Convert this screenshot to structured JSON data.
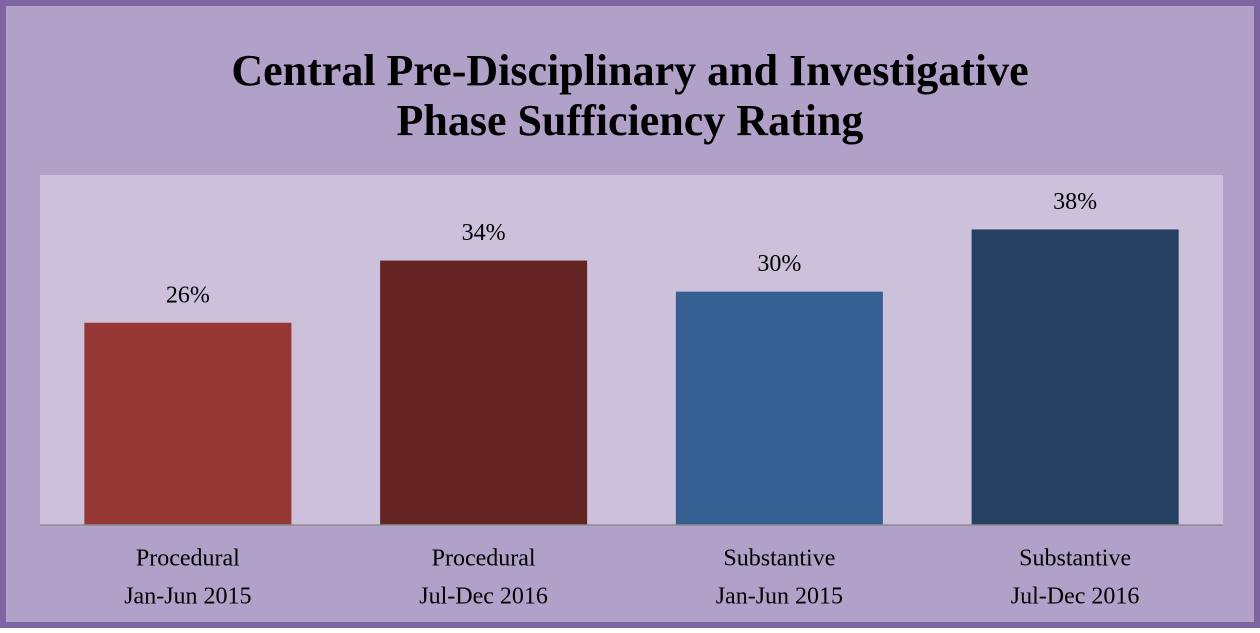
{
  "chart_data": {
    "type": "bar",
    "title": [
      "Central Pre-Disciplinary and Investigative",
      "Phase Sufficiency Rating"
    ],
    "categories": [
      [
        "Procedural",
        "Jan-Jun 2015"
      ],
      [
        "Procedural",
        "Jul-Dec 2016"
      ],
      [
        "Substantive",
        "Jan-Jun 2015"
      ],
      [
        "Substantive",
        "Jul-Dec 2016"
      ]
    ],
    "values": [
      26,
      34,
      30,
      38
    ],
    "value_labels": [
      "26%",
      "34%",
      "30%",
      "38%"
    ],
    "colors": [
      "#953735",
      "#632423",
      "#376092",
      "#254061"
    ],
    "ylim": [
      0,
      45
    ]
  }
}
